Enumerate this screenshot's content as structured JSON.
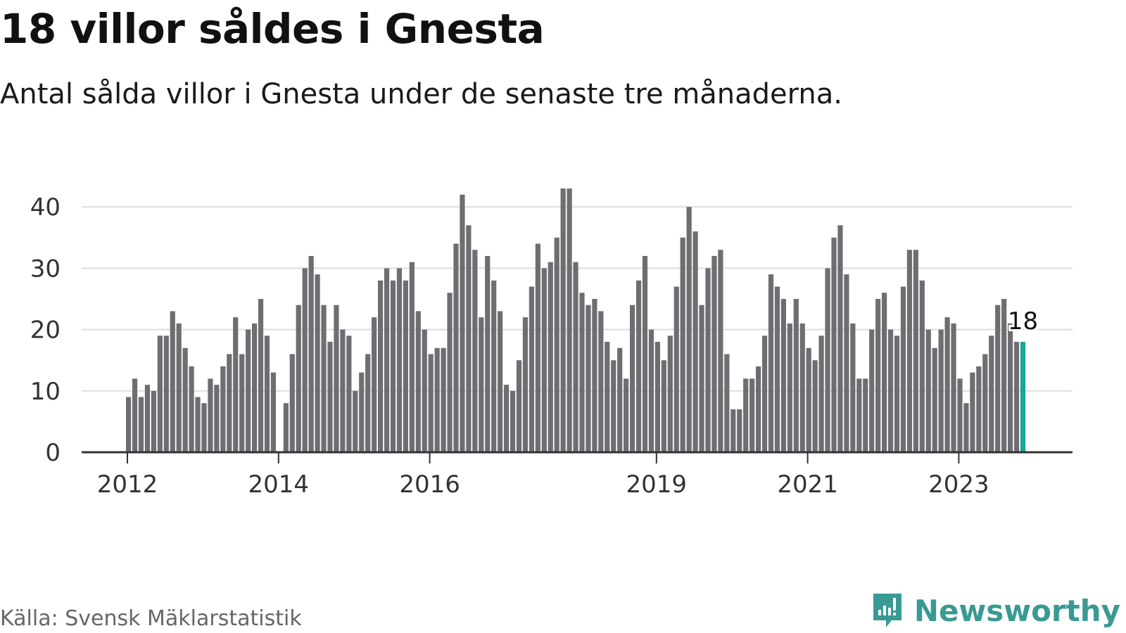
{
  "header": {
    "title": "18 villor såldes i Gnesta",
    "subtitle": "Antal sålda villor i Gnesta under de senaste tre månaderna."
  },
  "footer": {
    "source": "Källa: Svensk Mäklarstatistik",
    "brand": "Newsworthy"
  },
  "colors": {
    "bar": "#6e6d72",
    "highlight": "#1aa59a",
    "grid": "#dddddd",
    "axis": "#333333",
    "brand": "#3a9a93"
  },
  "chart_data": {
    "type": "bar",
    "frequency": "monthly",
    "series": [
      {
        "values": [
          9,
          12,
          9,
          11,
          10,
          19,
          19,
          23,
          21,
          17,
          14,
          9,
          8,
          12,
          11,
          14,
          16,
          22,
          16,
          20,
          21,
          25,
          19,
          13,
          null,
          8,
          16,
          24,
          30,
          32,
          29,
          24,
          18,
          24,
          20,
          19,
          10,
          13,
          16,
          22,
          28,
          30,
          28,
          30,
          28,
          31,
          23,
          20,
          16,
          17,
          17,
          26,
          34,
          42,
          37,
          33,
          22,
          32,
          28,
          23,
          11,
          10,
          15,
          22,
          27,
          34,
          30,
          31,
          35,
          43,
          43,
          31,
          26,
          24,
          25,
          23,
          18,
          15,
          17,
          12,
          24,
          28,
          32,
          20,
          18,
          15,
          19,
          27,
          35,
          40,
          36,
          24,
          30,
          32,
          33,
          16,
          7,
          7,
          12,
          12,
          14,
          19,
          29,
          27,
          25,
          21,
          25,
          21,
          17,
          15,
          19,
          30,
          35,
          37,
          29,
          21,
          12,
          12,
          20,
          25,
          26,
          20,
          19,
          27,
          33,
          33,
          28,
          20,
          17,
          20,
          22,
          21,
          12,
          8,
          13,
          14,
          16,
          19,
          24,
          25,
          21,
          18,
          18
        ]
      }
    ],
    "x_start": "2012-01",
    "x_end": "2023-11",
    "highlight": "2023-11",
    "highlight_label": "18",
    "x_ticks": [
      "2012",
      "2014",
      "2016",
      "2019",
      "2021",
      "2023"
    ],
    "ylim": [
      0,
      43
    ],
    "y_ticks": [
      0,
      10,
      20,
      30,
      40
    ],
    "grid": true,
    "legend": "none"
  }
}
